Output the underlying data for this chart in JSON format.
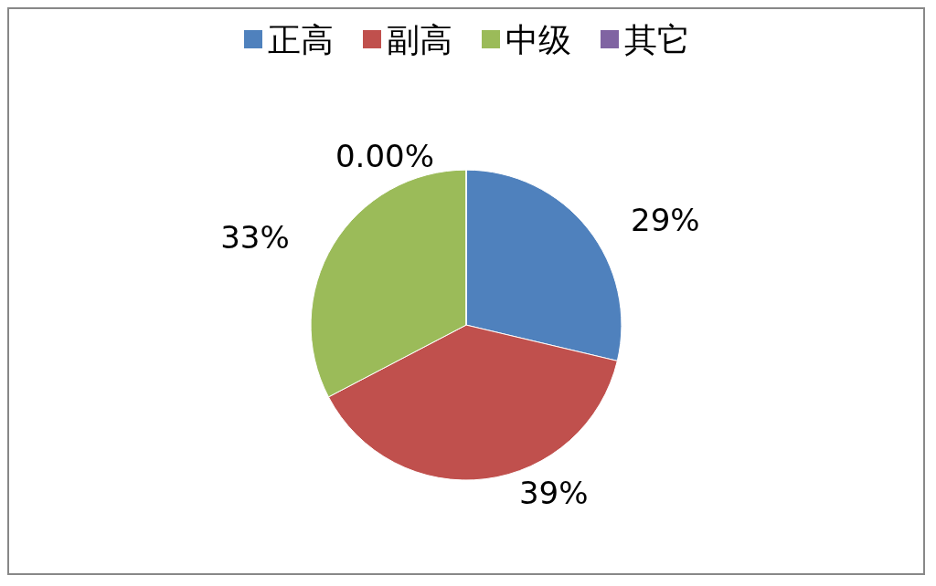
{
  "chart_data": {
    "type": "pie",
    "categories": [
      "正高",
      "副高",
      "中级",
      "其它"
    ],
    "values": [
      29,
      39,
      33,
      0
    ],
    "colors": [
      "#4f81bd",
      "#c0504d",
      "#9bbb59",
      "#8064a2"
    ],
    "value_labels": [
      "29%",
      "39%",
      "33%",
      "0.00%"
    ],
    "legend": "top"
  }
}
